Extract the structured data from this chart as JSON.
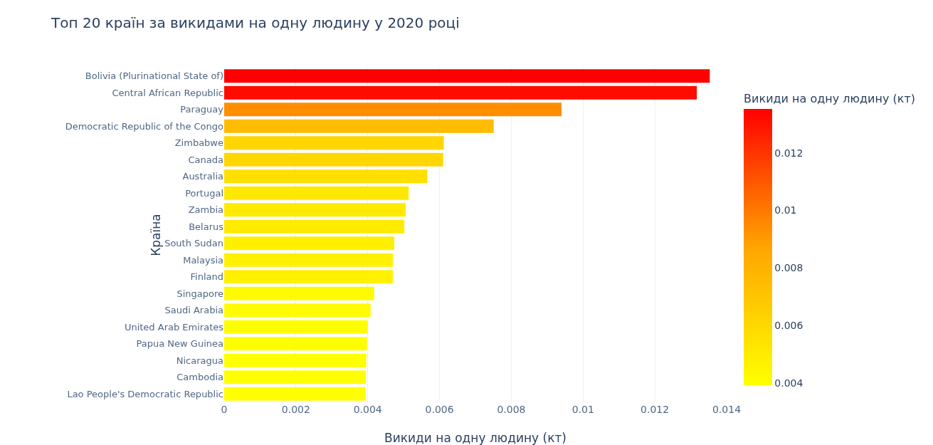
{
  "chart_data": {
    "type": "bar",
    "orientation": "horizontal",
    "title": "Топ 20 країн за викидами на одну людину у 2020 році",
    "xlabel": "Викиди на одну людину (кт)",
    "ylabel": "Країна",
    "clabel": "Викиди на одну людину (кт)",
    "categories": [
      "Bolivia (Plurinational State of)",
      "Central African Republic",
      "Paraguay",
      "Democratic Republic of the Congo",
      "Zimbabwe",
      "Canada",
      "Australia",
      "Portugal",
      "Zambia",
      "Belarus",
      "South Sudan",
      "Malaysia",
      "Finland",
      "Singapore",
      "Saudi Arabia",
      "United Arab Emirates",
      "Papua New Guinea",
      "Nicaragua",
      "Cambodia",
      "Lao People's Democratic Republic"
    ],
    "values": [
      0.01353,
      0.01317,
      0.0094,
      0.00751,
      0.00612,
      0.0061,
      0.00566,
      0.00514,
      0.00506,
      0.00502,
      0.00474,
      0.0047,
      0.0047,
      0.00418,
      0.00408,
      0.004,
      0.00398,
      0.00396,
      0.00395,
      0.00394
    ],
    "xlim": [
      0,
      0.014
    ],
    "xticks": [
      0,
      0.002,
      0.004,
      0.006,
      0.008,
      0.01,
      0.012,
      0.014
    ],
    "clim": [
      0.00394,
      0.01353
    ],
    "cticks": [
      0.004,
      0.006,
      0.008,
      0.01,
      0.012
    ],
    "grid": "x"
  }
}
